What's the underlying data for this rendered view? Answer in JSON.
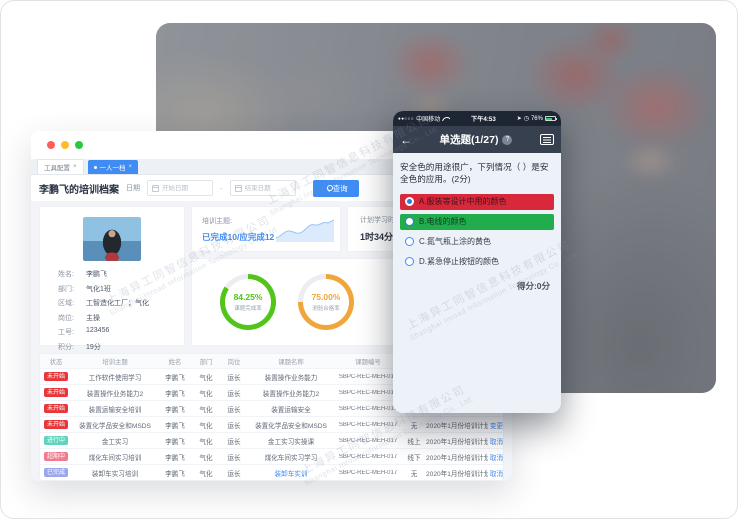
{
  "watermark": {
    "cn": "上海异工同智信息科技有限公司",
    "en": "Shanghai Inroad Information Technology Co., Ltd."
  },
  "desktop": {
    "tabs": [
      {
        "label": "工具配置",
        "close": "×",
        "active": false
      },
      {
        "label": "一人一档",
        "close": "×",
        "active": true
      }
    ],
    "toolbar": {
      "title": "李鹏飞的培训档案",
      "date_label": "日期",
      "start_placeholder": "开始日期",
      "end_placeholder": "结束日期",
      "range_separator": "-",
      "search_label": "查询"
    },
    "profile": {
      "fields": [
        {
          "label": "姓名:",
          "value": "李鹏飞"
        },
        {
          "label": "部门:",
          "value": "气化1班"
        },
        {
          "label": "区域:",
          "value": "工智造化工厂；气化"
        },
        {
          "label": "岗位:",
          "value": "主操"
        },
        {
          "label": "工号:",
          "value": "123456"
        },
        {
          "label": "积分:",
          "value": "19分"
        }
      ]
    },
    "summary": {
      "topic_label": "培训主题:",
      "topic_value": "已完成10/应完成12",
      "duration_label": "计划学习时长",
      "duration_value": "1时34分"
    },
    "donuts": [
      {
        "percent": 84.25,
        "display": "84.25%",
        "label": "课题完成率",
        "color": "#52c41a"
      },
      {
        "percent": 75.0,
        "display": "75.00%",
        "label": "测验合格率",
        "color": "#f0a63a"
      }
    ],
    "table": {
      "headers": [
        "状态",
        "培训主题",
        "姓名",
        "部门",
        "岗位",
        "课题名称",
        "课题编号",
        "",
        "",
        ""
      ],
      "rows": [
        {
          "status": "未开始",
          "status_color": "#e5383b",
          "topic": "工作软件使用学习",
          "name": "李鹏飞",
          "dept": "气化",
          "post": "运长",
          "course": "装置操作业务能力",
          "code": "SBPC-REC-MEH-017",
          "mode": "",
          "plan": "",
          "op": "",
          "link": false
        },
        {
          "status": "未开始",
          "status_color": "#e5383b",
          "topic": "装置操作业务能力2",
          "name": "李鹏飞",
          "dept": "气化",
          "post": "运长",
          "course": "装置操作业务能力2",
          "code": "SBPC-REC-MEH-017",
          "mode": "",
          "plan": "",
          "op": "",
          "link": false
        },
        {
          "status": "未开始",
          "status_color": "#e5383b",
          "topic": "装置运输安全培训",
          "name": "李鹏飞",
          "dept": "气化",
          "post": "运长",
          "course": "装置运输安全",
          "code": "SBPC-REC-MEH-017",
          "mode": "",
          "plan": "",
          "op": "",
          "link": false
        },
        {
          "status": "未开始",
          "status_color": "#e5383b",
          "topic": "装置化学品安全和MSDS",
          "name": "李鹏飞",
          "dept": "气化",
          "post": "运长",
          "course": "装置化学品安全和MSDS",
          "code": "SBPC-REC-MEH-017",
          "mode": "无",
          "plan": "2020年1月份培训计划",
          "op": "变更",
          "link": false
        },
        {
          "status": "进行中",
          "status_color": "#5fd3bc",
          "topic": "金工实习",
          "name": "李鹏飞",
          "dept": "气化",
          "post": "运长",
          "course": "金工实习实操课",
          "code": "SBPC-REC-MEH-017",
          "mode": "线上",
          "plan": "2020年1月份培训计划",
          "op": "取消",
          "link": false
        },
        {
          "status": "超期中",
          "status_color": "#f27a8d",
          "topic": "煤化车间实习培训",
          "name": "李鹏飞",
          "dept": "气化",
          "post": "运长",
          "course": "煤化车间实习学习",
          "code": "SBPC-REC-MEH-017",
          "mode": "线下",
          "plan": "2020年1月份培训计划",
          "op": "取消",
          "link": false
        },
        {
          "status": "已完成",
          "status_color": "#9aa7ee",
          "topic": "装卸车实习培训",
          "name": "李鹏飞",
          "dept": "气化",
          "post": "运长",
          "course": "装卸车实训",
          "code": "SBPC-REC-MEH-017",
          "mode": "无",
          "plan": "2020年1月份培训计划",
          "op": "取消",
          "link": true
        }
      ]
    }
  },
  "phone": {
    "status_bar": {
      "signal": "●●○○○",
      "carrier": "中国移动",
      "time": "下午4:53",
      "battery": "76%"
    },
    "nav": {
      "title": "单选题(1/27)",
      "help": "?"
    },
    "question": "安全色的用途很广，下列情况（ ）是安全色的应用。(2分)",
    "options": [
      {
        "text": "A.服装等设计中用的颜色",
        "bg": "#d8283c",
        "text_color": "#3a161c",
        "selected": true
      },
      {
        "text": "B.电线的颜色",
        "bg": "#21ad4d",
        "text_color": "#123a20",
        "selected": false
      },
      {
        "text": "C.氮气瓶上涂的黄色",
        "bg": "",
        "text_color": "#333a44",
        "selected": false
      },
      {
        "text": "D.紧急停止按钮的颜色",
        "bg": "",
        "text_color": "#333a44",
        "selected": false
      }
    ],
    "score": "得分:0分"
  }
}
